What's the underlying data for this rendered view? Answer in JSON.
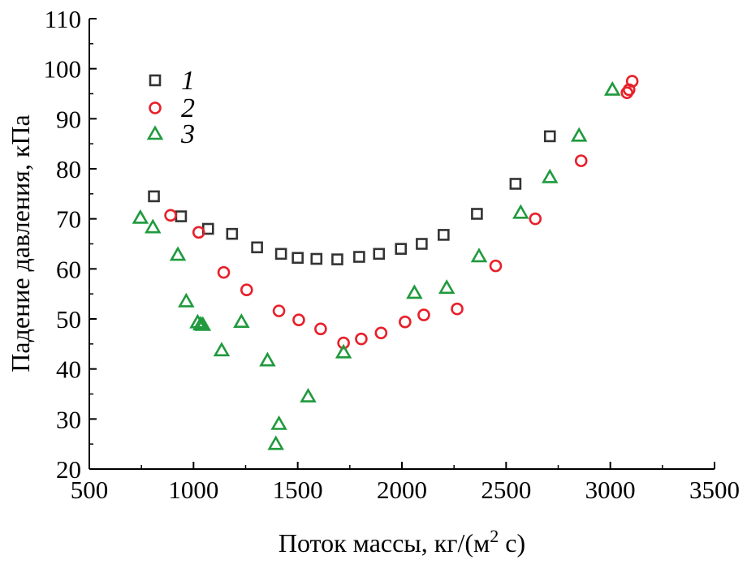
{
  "chart_data": {
    "type": "scatter",
    "xlabel": "Поток массы, кг/(м",
    "xlabel_sup": "2",
    "xlabel_end": " с)",
    "ylabel": "Падение давления, кПа",
    "xlim": [
      500,
      3500
    ],
    "ylim": [
      20,
      110
    ],
    "x_ticks": [
      500,
      1000,
      1500,
      2000,
      2500,
      3000,
      3500
    ],
    "y_ticks": [
      20,
      30,
      40,
      50,
      60,
      70,
      80,
      90,
      100,
      110
    ],
    "grid": false,
    "legend_position": "top-left",
    "series": [
      {
        "name": "1",
        "marker": "square",
        "color": "#333333",
        "points": [
          [
            810,
            74.5
          ],
          [
            940,
            70.5
          ],
          [
            1070,
            68
          ],
          [
            1185,
            67
          ],
          [
            1305,
            64.3
          ],
          [
            1420,
            63
          ],
          [
            1500,
            62.2
          ],
          [
            1590,
            62
          ],
          [
            1690,
            61.9
          ],
          [
            1795,
            62.4
          ],
          [
            1890,
            63
          ],
          [
            1995,
            64
          ],
          [
            2095,
            65
          ],
          [
            2200,
            66.8
          ],
          [
            2360,
            71
          ],
          [
            2545,
            77
          ],
          [
            2710,
            86.5
          ]
        ]
      },
      {
        "name": "2",
        "marker": "circle",
        "color": "#e8202a",
        "points": [
          [
            890,
            70.7
          ],
          [
            1025,
            67.3
          ],
          [
            1145,
            59.3
          ],
          [
            1255,
            55.8
          ],
          [
            1410,
            51.6
          ],
          [
            1505,
            49.8
          ],
          [
            1610,
            48
          ],
          [
            1720,
            45.2
          ],
          [
            1805,
            46
          ],
          [
            1900,
            47.2
          ],
          [
            2015,
            49.4
          ],
          [
            2105,
            50.8
          ],
          [
            2265,
            52
          ],
          [
            2450,
            60.6
          ],
          [
            2640,
            70
          ],
          [
            2860,
            81.6
          ],
          [
            3080,
            95.2
          ],
          [
            3090,
            95.8
          ],
          [
            3105,
            97.5
          ]
        ]
      },
      {
        "name": "3",
        "marker": "triangle",
        "color": "#1f9a3d",
        "points": [
          [
            745,
            70.2
          ],
          [
            805,
            68.3
          ],
          [
            925,
            62.8
          ],
          [
            965,
            53.5
          ],
          [
            1020,
            49.3
          ],
          [
            1035,
            48.9
          ],
          [
            1045,
            48.8
          ],
          [
            1135,
            43.7
          ],
          [
            1230,
            49.4
          ],
          [
            1355,
            41.7
          ],
          [
            1395,
            25
          ],
          [
            1410,
            29
          ],
          [
            1550,
            34.5
          ],
          [
            1720,
            43.3
          ],
          [
            2060,
            55.2
          ],
          [
            2215,
            56.2
          ],
          [
            2370,
            62.5
          ],
          [
            2570,
            71.2
          ],
          [
            2710,
            78.3
          ],
          [
            2850,
            86.6
          ],
          [
            3010,
            95.8
          ]
        ]
      }
    ]
  }
}
